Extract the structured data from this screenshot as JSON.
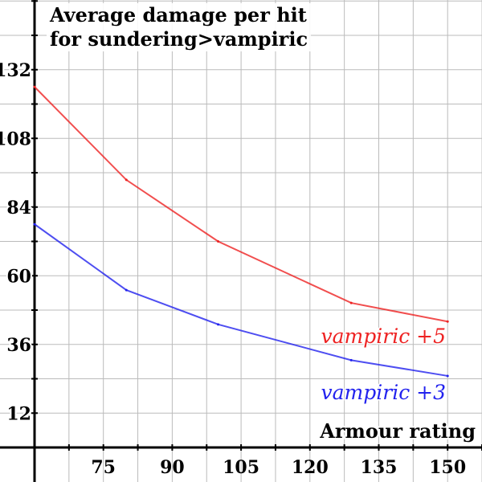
{
  "chart_data": {
    "type": "line",
    "title": "Average damage per hit for sundering>vampiric",
    "title_lines": [
      "Average damage per hit",
      "for sundering>vampiric"
    ],
    "xlabel": "Armour rating",
    "ylabel": "",
    "xlim": [
      60,
      157.5
    ],
    "ylim": [
      0,
      156
    ],
    "xticks": [
      75,
      90,
      105,
      120,
      135,
      150
    ],
    "yticks": [
      12,
      36,
      60,
      84,
      108,
      132
    ],
    "grid": true,
    "legend": "inline labels near line ends",
    "series": [
      {
        "name": "vampiric +5",
        "color": "#ee2222",
        "x": [
          60,
          80,
          100,
          129,
          150
        ],
        "y": [
          126,
          93.5,
          72,
          50.5,
          44
        ]
      },
      {
        "name": "vampiric +3",
        "color": "#2222ee",
        "x": [
          60,
          80,
          100,
          129,
          150
        ],
        "y": [
          78,
          55,
          43,
          30.5,
          25
        ]
      }
    ]
  }
}
